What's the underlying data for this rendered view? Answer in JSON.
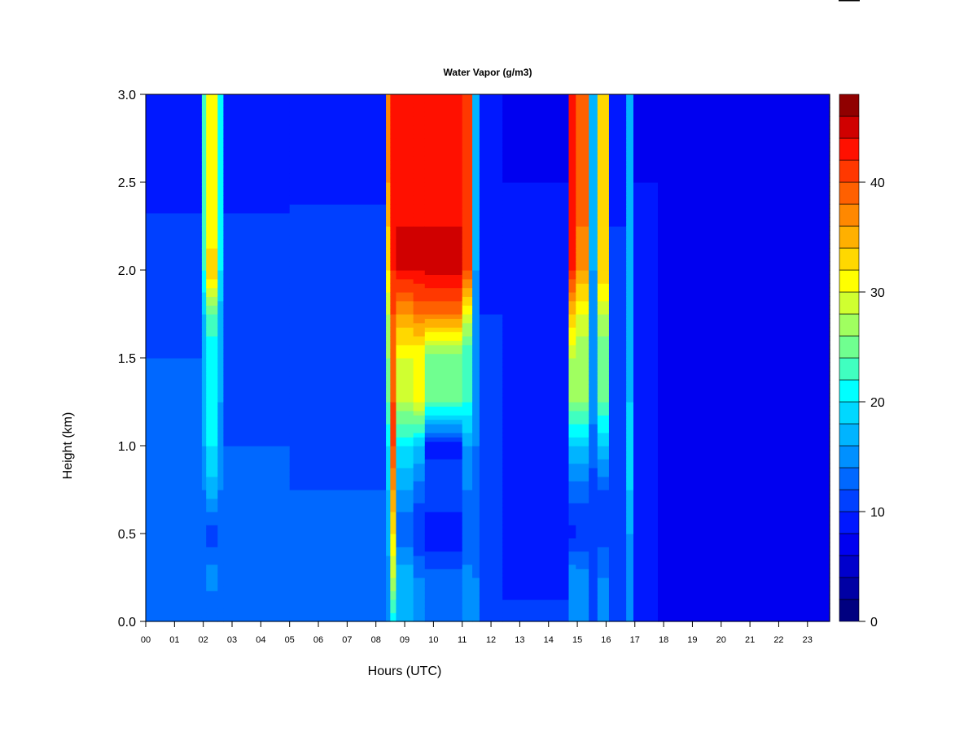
{
  "chart_data": {
    "type": "heatmap",
    "title": "Water Vapor (g/m3)",
    "xlabel": "Hours (UTC)",
    "ylabel": "Height (km)",
    "xlim": [
      0,
      23.77
    ],
    "ylim": [
      0,
      3.0
    ],
    "x_ticks": [
      "00",
      "01",
      "02",
      "03",
      "04",
      "05",
      "06",
      "07",
      "08",
      "09",
      "10",
      "11",
      "12",
      "13",
      "14",
      "15",
      "16",
      "17",
      "18",
      "19",
      "20",
      "21",
      "22",
      "23"
    ],
    "y_ticks": [
      "0.0",
      "0.5",
      "1.0",
      "1.5",
      "2.0",
      "2.5",
      "3.0"
    ],
    "colorbar": {
      "min": 0,
      "max": 48,
      "step": 2,
      "tick_labels": [
        "0",
        "10",
        "20",
        "30",
        "40"
      ],
      "tick_values": [
        0,
        10,
        20,
        30,
        40
      ],
      "colors": [
        "#000080",
        "#0000a4",
        "#0000cc",
        "#0000f0",
        "#0018ff",
        "#0040ff",
        "#0068ff",
        "#0090ff",
        "#00b4ff",
        "#00d8ff",
        "#00ffff",
        "#40ffc0",
        "#70ff90",
        "#a0ff60",
        "#d0ff30",
        "#ffff00",
        "#ffd800",
        "#ffb000",
        "#ff8800",
        "#ff6000",
        "#ff3800",
        "#ff1000",
        "#d00000",
        "#900000"
      ]
    },
    "heights_km": [
      0,
      0.25,
      0.5,
      0.75,
      1.0,
      1.25,
      1.5,
      1.75,
      2.0,
      2.25,
      2.5,
      2.75,
      3.0
    ],
    "columns": [
      {
        "hours": [
          0,
          1.95
        ],
        "values": [
          14,
          13,
          13,
          12.5,
          12.5,
          12,
          12,
          11.5,
          11,
          10.5,
          9,
          8.5,
          8.5
        ]
      },
      {
        "hours": [
          1.95,
          2.1
        ],
        "values": [
          13,
          14,
          13,
          14,
          16,
          17,
          17,
          18,
          22,
          22,
          22,
          22,
          22
        ]
      },
      {
        "hours": [
          2.1,
          2.5
        ],
        "values": [
          12,
          15,
          11,
          17,
          20,
          22,
          20,
          24,
          34,
          30,
          30,
          30,
          30
        ]
      },
      {
        "hours": [
          2.5,
          2.7
        ],
        "values": [
          13,
          14,
          13,
          14,
          15,
          16,
          16,
          17,
          20,
          20,
          20,
          20,
          20
        ]
      },
      {
        "hours": [
          2.7,
          5.0
        ],
        "values": [
          13,
          12.5,
          12.5,
          12,
          12,
          11.5,
          11.5,
          11,
          10.5,
          10.5,
          9,
          8.5,
          8.5
        ]
      },
      {
        "hours": [
          5.0,
          8.35
        ],
        "values": [
          13,
          12.5,
          12,
          12,
          11.5,
          11.5,
          11,
          11,
          10.5,
          10.5,
          9.5,
          9,
          9
        ]
      },
      {
        "hours": [
          8.35,
          8.5
        ],
        "values": [
          14,
          15,
          17,
          18,
          20,
          24,
          26,
          28,
          32,
          34,
          36,
          36,
          36
        ]
      },
      {
        "hours": [
          8.5,
          8.7
        ],
        "values": [
          20,
          28,
          32,
          36,
          40,
          40,
          38,
          40,
          42,
          42,
          42,
          42,
          42
        ]
      },
      {
        "hours": [
          8.7,
          9.3
        ],
        "values": [
          16,
          18,
          12,
          16,
          20,
          28,
          30,
          36,
          44,
          44,
          42,
          42,
          42
        ]
      },
      {
        "hours": [
          9.3,
          9.7
        ],
        "values": [
          14,
          14,
          10,
          13,
          18,
          30,
          30,
          38,
          44,
          44,
          42,
          42,
          42
        ]
      },
      {
        "hours": [
          9.7,
          11.0
        ],
        "values": [
          14,
          13,
          8,
          12,
          9,
          24,
          24,
          38,
          45,
          44,
          43,
          42,
          42
        ]
      },
      {
        "hours": [
          11.0,
          11.35
        ],
        "values": [
          14,
          15,
          12,
          14,
          16,
          22,
          22,
          30,
          40,
          40,
          40,
          40,
          40
        ]
      },
      {
        "hours": [
          11.35,
          11.6
        ],
        "values": [
          14,
          14,
          13,
          13,
          14,
          15,
          15,
          15,
          16,
          16,
          16,
          16,
          16
        ]
      },
      {
        "hours": [
          11.6,
          12.4
        ],
        "values": [
          12,
          11,
          11,
          11,
          10.5,
          10.5,
          10,
          10,
          9.5,
          9.5,
          8.5,
          8,
          8
        ]
      },
      {
        "hours": [
          12.4,
          14.7
        ],
        "values": [
          11,
          9,
          9,
          9,
          9,
          9,
          9,
          9,
          9,
          8.5,
          8,
          7.5,
          7.5
        ]
      },
      {
        "hours": [
          14.7,
          14.95
        ],
        "values": [
          14,
          16,
          9,
          13,
          18,
          26,
          28,
          34,
          42,
          42,
          42,
          42,
          42
        ]
      },
      {
        "hours": [
          14.95,
          15.4
        ],
        "values": [
          14,
          15,
          10,
          13,
          18,
          26,
          26,
          30,
          36,
          38,
          38,
          38,
          38
        ]
      },
      {
        "hours": [
          15.4,
          15.7
        ],
        "values": [
          12,
          11,
          10,
          11,
          13,
          15,
          15,
          15,
          16,
          16,
          16,
          16,
          16
        ]
      },
      {
        "hours": [
          15.7,
          16.1
        ],
        "values": [
          14,
          14,
          11,
          12,
          18,
          24,
          24,
          28,
          34,
          32,
          32,
          32,
          32
        ]
      },
      {
        "hours": [
          16.1,
          16.7
        ],
        "values": [
          12,
          11,
          10.5,
          10.5,
          10.5,
          10.5,
          10.5,
          10,
          10,
          10,
          9.5,
          9,
          9
        ]
      },
      {
        "hours": [
          16.7,
          16.95
        ],
        "values": [
          14,
          15,
          16,
          18,
          19,
          18,
          17,
          17,
          17,
          16,
          16,
          16,
          16
        ]
      },
      {
        "hours": [
          16.95,
          17.8
        ],
        "values": [
          9.5,
          9,
          9,
          9,
          9,
          8.5,
          8.5,
          8.5,
          8.5,
          8,
          8,
          7.5,
          7.5
        ]
      },
      {
        "hours": [
          17.8,
          23.77
        ],
        "values": [
          7.5,
          7.5,
          7,
          7,
          7,
          7,
          7,
          7,
          7,
          6.5,
          6.5,
          6,
          6
        ]
      }
    ]
  }
}
